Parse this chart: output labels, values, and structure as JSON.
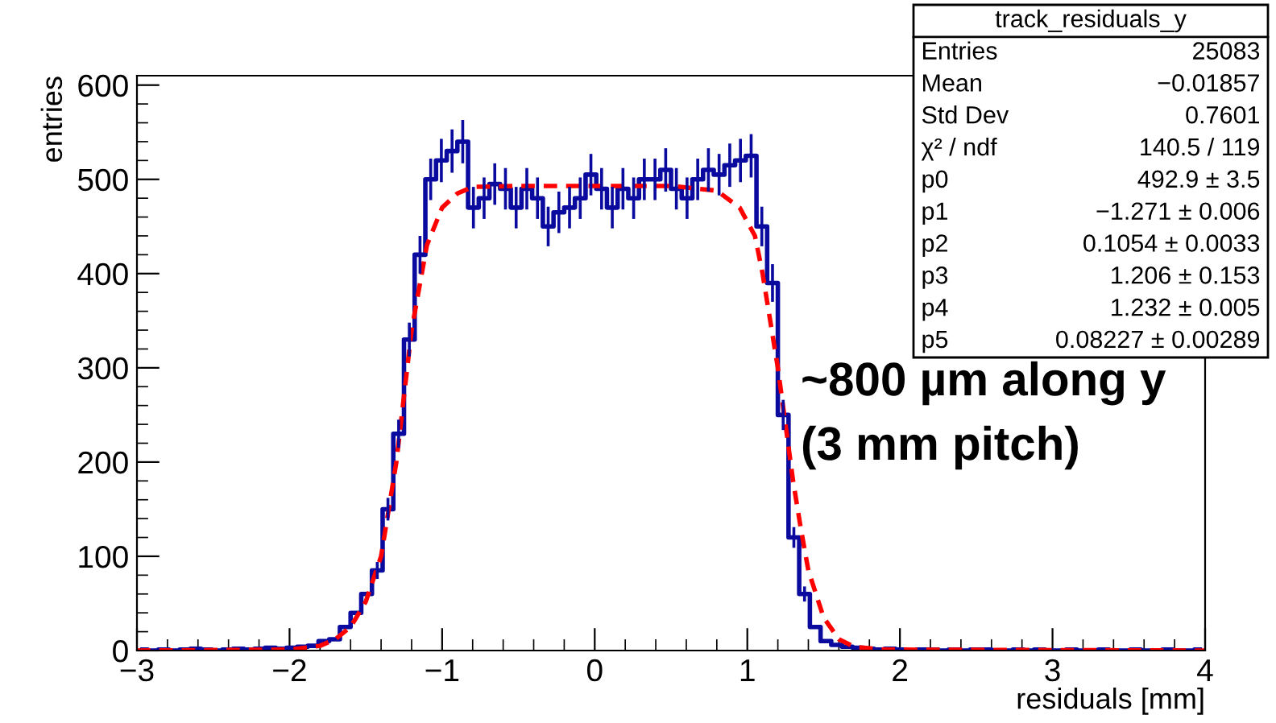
{
  "chart_data": {
    "type": "step",
    "xlabel": "residuals [mm]",
    "ylabel": "entries",
    "x": [
      -2.965,
      -2.895,
      -2.825,
      -2.755,
      -2.685,
      -2.615,
      -2.545,
      -2.475,
      -2.405,
      -2.335,
      -2.265,
      -2.195,
      -2.125,
      -2.055,
      -1.985,
      -1.915,
      -1.845,
      -1.775,
      -1.705,
      -1.635,
      -1.565,
      -1.495,
      -1.425,
      -1.355,
      -1.285,
      -1.215,
      -1.145,
      -1.075,
      -1.005,
      -0.935,
      -0.865,
      -0.795,
      -0.725,
      -0.655,
      -0.585,
      -0.515,
      -0.445,
      -0.375,
      -0.305,
      -0.235,
      -0.165,
      -0.095,
      -0.025,
      0.045,
      0.115,
      0.185,
      0.255,
      0.325,
      0.395,
      0.465,
      0.535,
      0.605,
      0.675,
      0.745,
      0.815,
      0.885,
      0.955,
      1.025,
      1.095,
      1.165,
      1.235,
      1.305,
      1.375,
      1.445,
      1.515,
      1.585,
      1.655,
      1.725,
      1.795,
      1.865,
      1.935,
      2.005,
      2.075,
      2.145,
      2.215,
      2.285,
      2.355,
      2.425,
      2.495,
      2.565,
      2.635,
      2.705,
      2.775,
      2.845,
      2.915,
      2.985,
      3.055,
      3.125,
      3.195,
      3.265,
      3.335,
      3.405,
      3.475,
      3.545,
      3.615,
      3.685,
      3.755,
      3.825,
      3.895,
      3.965
    ],
    "values": [
      1,
      0,
      1,
      0,
      1,
      2,
      1,
      0,
      1,
      2,
      1,
      2,
      3,
      2,
      3,
      4,
      5,
      10,
      12,
      25,
      40,
      60,
      85,
      150,
      230,
      330,
      420,
      500,
      520,
      530,
      540,
      470,
      480,
      495,
      490,
      470,
      490,
      480,
      450,
      465,
      470,
      480,
      505,
      490,
      470,
      490,
      480,
      500,
      500,
      510,
      490,
      480,
      500,
      510,
      505,
      515,
      520,
      525,
      450,
      390,
      250,
      120,
      60,
      25,
      10,
      6,
      4,
      3,
      2,
      1,
      2,
      1,
      0,
      1,
      1,
      0,
      1,
      0,
      1,
      1,
      0,
      0,
      1,
      0,
      1,
      0,
      0,
      1,
      0,
      0,
      1,
      0,
      0,
      1,
      0,
      0,
      1,
      0,
      0,
      1
    ],
    "errors": [
      null,
      null,
      null,
      null,
      null,
      null,
      null,
      null,
      null,
      null,
      null,
      null,
      null,
      null,
      null,
      null,
      null,
      null,
      null,
      null,
      null,
      null,
      9,
      12,
      15,
      18,
      20,
      22,
      23,
      23,
      23,
      22,
      22,
      22,
      22,
      22,
      22,
      22,
      21,
      22,
      22,
      22,
      22,
      22,
      22,
      22,
      22,
      22,
      22,
      23,
      22,
      22,
      22,
      23,
      22,
      23,
      23,
      23,
      21,
      20,
      16,
      11,
      8,
      null,
      null,
      null,
      null,
      null,
      null,
      null,
      null,
      null,
      null,
      null,
      null,
      null,
      null,
      null,
      null,
      null,
      null,
      null,
      null,
      null,
      null,
      null,
      null,
      null,
      null,
      null,
      null,
      null,
      null,
      null,
      null,
      null,
      null,
      null,
      null,
      null
    ],
    "color": "#0a0a9e",
    "series": [
      {
        "type": "line",
        "color": "#ff0000",
        "line_style": "dashed",
        "x": [
          -3,
          -2,
          -1.8,
          -1.7,
          -1.6,
          -1.5,
          -1.4,
          -1.3,
          -1.25,
          -1.2,
          -1.1,
          -1.0,
          -0.9,
          -0.8,
          -0.5,
          0.5,
          0.8,
          0.95,
          1.05,
          1.1,
          1.2,
          1.25,
          1.3,
          1.35,
          1.4,
          1.5,
          1.6,
          1.7,
          1.9,
          4
        ],
        "values": [
          0,
          1,
          5,
          12,
          25,
          52,
          100,
          200,
          270,
          340,
          430,
          470,
          485,
          492,
          493,
          493,
          488,
          470,
          440,
          400,
          300,
          240,
          180,
          130,
          85,
          35,
          12,
          4,
          1,
          0
        ]
      }
    ],
    "xlim": [
      -3,
      4
    ],
    "xticks": [
      {
        "value": -3,
        "label": "−3"
      },
      {
        "value": -2,
        "label": "−2"
      },
      {
        "value": -1,
        "label": "−1"
      },
      0,
      1,
      2,
      3,
      4
    ],
    "ylim": [
      0,
      610
    ],
    "yticks": [
      0,
      100,
      200,
      300,
      400,
      500,
      600
    ],
    "annotations": [
      "track_residuals_y",
      "Entries",
      "25083",
      "Mean",
      "−0.01857",
      "Std Dev",
      "0.7601",
      "χ² / ndf",
      "140.5 / 119",
      "p0",
      "492.9 ± 3.5",
      "p1",
      "−1.271 ± 0.006",
      "p2",
      "0.1054 ± 0.0033",
      "p3",
      "1.206 ± 0.153",
      "p4",
      "1.232 ± 0.005",
      "p5",
      "0.08227 ± 0.00289",
      "~800 µm along y\n(3 mm pitch)"
    ]
  }
}
